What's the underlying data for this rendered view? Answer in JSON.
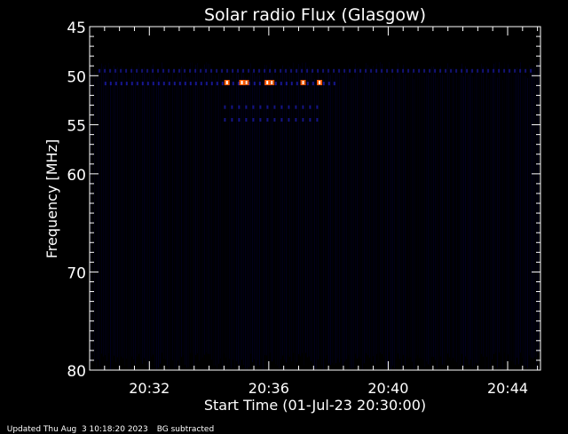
{
  "chart_data": {
    "type": "heatmap",
    "title": "Solar radio Flux (Glasgow)",
    "xlabel": "Start Time (01-Jul-23 20:30:00)",
    "ylabel": "Frequency [MHz]",
    "x_unit": "minutes after 20:30",
    "xlim": [
      30,
      45.1
    ],
    "ylim": [
      45,
      80
    ],
    "x_ticks": [
      {
        "value": 32,
        "label": "20:32"
      },
      {
        "value": 36,
        "label": "20:36"
      },
      {
        "value": 40,
        "label": "20:40"
      },
      {
        "value": 44,
        "label": "20:44"
      }
    ],
    "y_ticks": [
      {
        "value": 45,
        "label": "45"
      },
      {
        "value": 50,
        "label": "50"
      },
      {
        "value": 55,
        "label": "55"
      },
      {
        "value": 60,
        "label": "60"
      },
      {
        "value": 70,
        "label": "70"
      },
      {
        "value": 80,
        "label": "80"
      }
    ],
    "colors": {
      "low": "#00005a",
      "mid": "#2a2aff",
      "high": "#ff5a00",
      "peak": "#ffffff"
    },
    "features": [
      {
        "name": "narrowband-50",
        "freq": 49.5,
        "t_start": 30.3,
        "t_end": 44.9,
        "intensity": 0.45
      },
      {
        "name": "band-51",
        "freq": 50.8,
        "t_start": 30.5,
        "t_end": 38.2,
        "intensity": 0.55
      },
      {
        "name": "burst-band-53",
        "freq": 53.2,
        "t_start": 34.5,
        "t_end": 37.8,
        "intensity": 0.5
      },
      {
        "name": "burst-band-54",
        "freq": 54.5,
        "t_start": 34.5,
        "t_end": 37.8,
        "intensity": 0.5
      }
    ],
    "bursts": [
      {
        "time": 34.6,
        "freq": 50.7,
        "intensity": 1.0
      },
      {
        "time": 35.1,
        "freq": 50.7,
        "intensity": 1.0
      },
      {
        "time": 35.25,
        "freq": 50.7,
        "intensity": 0.85
      },
      {
        "time": 35.95,
        "freq": 50.7,
        "intensity": 1.0
      },
      {
        "time": 36.1,
        "freq": 50.7,
        "intensity": 0.85
      },
      {
        "time": 37.15,
        "freq": 50.7,
        "intensity": 0.9
      },
      {
        "time": 37.7,
        "freq": 50.7,
        "intensity": 1.0
      }
    ]
  },
  "footer": {
    "updated": "Updated Thu Aug  3 10:18:20 2023",
    "mode": "BG subtracted"
  }
}
